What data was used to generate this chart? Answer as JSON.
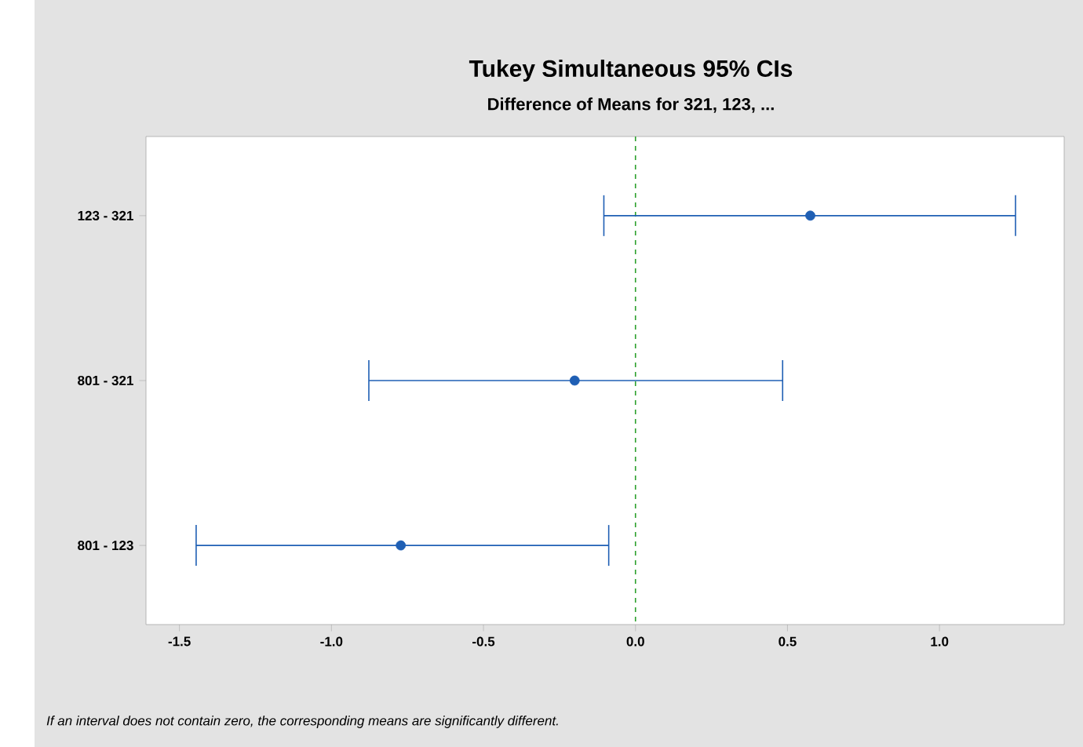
{
  "chart_data": {
    "type": "scatter",
    "orientation": "horizontal",
    "title": "Tukey Simultaneous 95% CIs",
    "subtitle": "Difference of Means for 321, 123, ...",
    "categories": [
      "123 - 321",
      "801 - 321",
      "801 - 123"
    ],
    "values": [
      0.575,
      -0.2,
      -0.772
    ],
    "errors": [
      [
        -0.104,
        1.25
      ],
      [
        -0.877,
        0.484
      ],
      [
        -1.445,
        -0.088
      ]
    ],
    "color": "#1f5fb4",
    "marker": "circle",
    "xlim": [
      -1.61,
      1.41
    ],
    "xticks": [
      -1.5,
      {
        "value": -1.0,
        "label": "-1.0"
      },
      -0.5,
      {
        "value": 0.0,
        "label": "0.0"
      },
      0.5,
      {
        "value": 1.0,
        "label": "1.0"
      }
    ],
    "ref_lines": [
      {
        "axis": "x",
        "value": 0,
        "color": "#2ca02c",
        "line_style": "dashed"
      }
    ],
    "grid": false,
    "annotations": [
      "If an interval does not contain zero, the corresponding means are significantly different."
    ]
  }
}
